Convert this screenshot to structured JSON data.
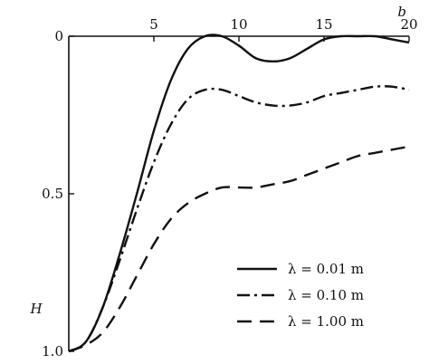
{
  "chart_data": {
    "type": "line",
    "xlabel": "b",
    "ylabel": "H",
    "xlim": [
      0,
      20
    ],
    "ylim": [
      0,
      1.0
    ],
    "y_axis_inverted": true,
    "x_axis_position": "top",
    "x_ticks": [
      {
        "value": 5,
        "label": "5"
      },
      {
        "value": 10,
        "label": "10"
      },
      {
        "value": 15,
        "label": "15"
      },
      {
        "value": 20,
        "label": "20"
      }
    ],
    "y_ticks": [
      {
        "value": 0,
        "label": "0"
      },
      {
        "value": 0.5,
        "label": "0.5"
      },
      {
        "value": 1.0,
        "label": "1.0"
      }
    ],
    "legend_placement": "bottom-right",
    "series": [
      {
        "name": "λ = 0.01 m",
        "style": "solid",
        "x": [
          0,
          1,
          2,
          3,
          4,
          5,
          6,
          7,
          8,
          9,
          10,
          11,
          12,
          13,
          14,
          15,
          16,
          17,
          18,
          19,
          20
        ],
        "y": [
          1.0,
          0.97,
          0.86,
          0.69,
          0.5,
          0.3,
          0.14,
          0.04,
          0.0,
          0.0,
          0.03,
          0.07,
          0.08,
          0.07,
          0.04,
          0.01,
          0.0,
          0.0,
          0.0,
          0.01,
          0.02
        ]
      },
      {
        "name": "λ = 0.10 m",
        "style": "dashdot",
        "x": [
          0,
          1,
          2,
          3,
          4,
          5,
          6,
          7,
          8,
          9,
          10,
          11,
          12,
          13,
          14,
          15,
          16,
          17,
          18,
          19,
          20
        ],
        "y": [
          1.0,
          0.97,
          0.86,
          0.71,
          0.55,
          0.4,
          0.28,
          0.2,
          0.17,
          0.17,
          0.19,
          0.21,
          0.22,
          0.22,
          0.21,
          0.19,
          0.18,
          0.17,
          0.16,
          0.16,
          0.17
        ]
      },
      {
        "name": "λ = 1.00 m",
        "style": "dashed",
        "x": [
          0,
          1,
          2,
          3,
          4,
          5,
          6,
          7,
          8,
          9,
          10,
          11,
          12,
          13,
          14,
          15,
          16,
          17,
          18,
          19,
          20
        ],
        "y": [
          1.0,
          0.98,
          0.94,
          0.86,
          0.76,
          0.66,
          0.58,
          0.53,
          0.5,
          0.48,
          0.48,
          0.48,
          0.47,
          0.46,
          0.44,
          0.42,
          0.4,
          0.38,
          0.37,
          0.36,
          0.35
        ]
      }
    ]
  }
}
